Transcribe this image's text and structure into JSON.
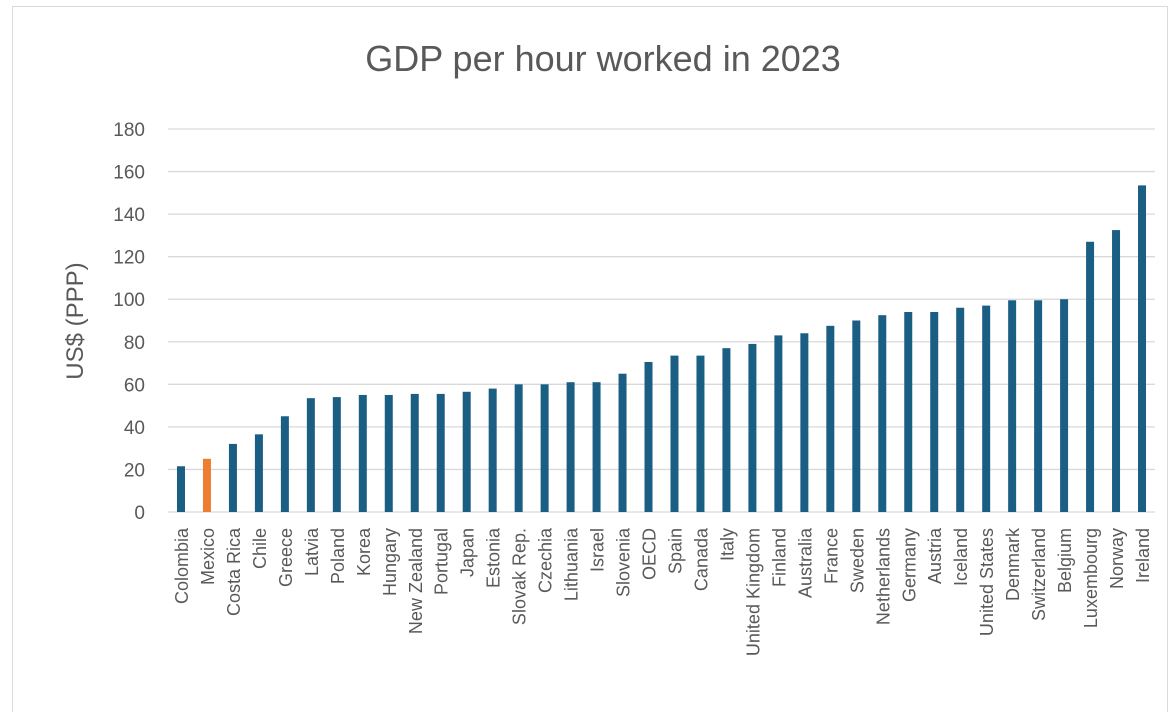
{
  "chart_data": {
    "type": "bar",
    "title": "GDP per hour worked in 2023",
    "xlabel": "",
    "ylabel": "US$ (PPP)",
    "ylim": [
      0,
      180
    ],
    "yticks": [
      0,
      20,
      40,
      60,
      80,
      100,
      120,
      140,
      160,
      180
    ],
    "grid": true,
    "legend": "none",
    "categories": [
      "Colombia",
      "Mexico",
      "Costa Rica",
      "Chile",
      "Greece",
      "Latvia",
      "Poland",
      "Korea",
      "Hungary",
      "New Zealand",
      "Portugal",
      "Japan",
      "Estonia",
      "Slovak Rep.",
      "Czechia",
      "Lithuania",
      "Israel",
      "Slovenia",
      "OECD",
      "Spain",
      "Canada",
      "Italy",
      "United Kingdom",
      "Finland",
      "Australia",
      "France",
      "Sweden",
      "Netherlands",
      "Germany",
      "Austria",
      "Iceland",
      "United States",
      "Denmark",
      "Switzerland",
      "Belgium",
      "Luxembourg",
      "Norway",
      "Ireland"
    ],
    "values": [
      21.5,
      25,
      32,
      36.5,
      45,
      53.5,
      54,
      55,
      55,
      55.5,
      55.5,
      56.5,
      58,
      60,
      60,
      61,
      61,
      65,
      70.5,
      73.5,
      73.5,
      77,
      79,
      83,
      84,
      87.5,
      90,
      92.5,
      94,
      94,
      96,
      97,
      99.5,
      99.5,
      100,
      127,
      132.5,
      153.5
    ],
    "highlight": {
      "category": "Mexico",
      "color": "#ED7D31"
    },
    "bar_color": "#1B5E84"
  }
}
